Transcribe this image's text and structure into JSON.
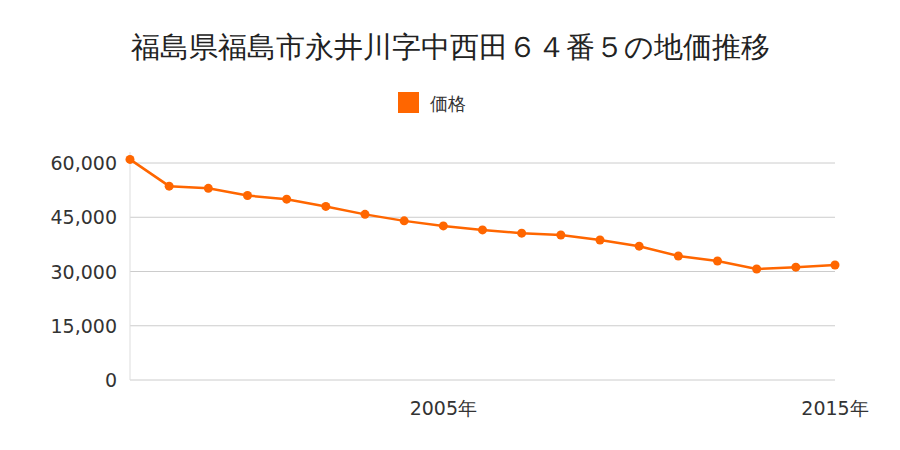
{
  "chart_data": {
    "type": "line",
    "title": "福島県福島市永井川字中西田６４番５の地価推移",
    "categories": [
      null,
      null,
      null,
      null,
      null,
      null,
      null,
      null,
      "2005年",
      null,
      null,
      null,
      null,
      null,
      null,
      null,
      null,
      null,
      "2015年"
    ],
    "series": [
      {
        "name": "価格",
        "color": "#ff6600",
        "marker": "circle",
        "line_style": "solid",
        "values": [
          61000,
          53600,
          53000,
          51000,
          50000,
          48000,
          45800,
          44000,
          42600,
          41500,
          40600,
          40100,
          38700,
          37000,
          34300,
          32900,
          30700,
          31200,
          31800
        ]
      }
    ],
    "ylim": [
      0,
      63000
    ],
    "yticks": [
      0,
      {
        "value": 15000,
        "label": "15,000"
      },
      {
        "value": 30000,
        "label": "30,000"
      },
      {
        "value": 45000,
        "label": "45,000"
      },
      {
        "value": 60000,
        "label": "60,000"
      }
    ],
    "grid": true,
    "legend": "top"
  }
}
